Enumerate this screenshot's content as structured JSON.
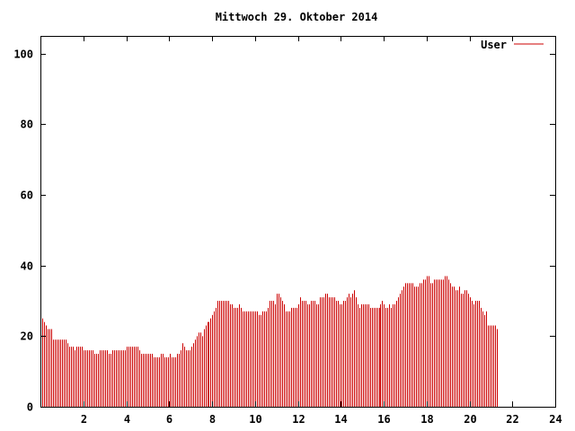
{
  "chart_data": {
    "type": "bar",
    "title": "Mittwoch 29. Oktober 2014",
    "xlabel": "",
    "ylabel": "",
    "xlim": [
      0,
      24
    ],
    "ylim": [
      0,
      105
    ],
    "x_ticks": [
      2,
      4,
      6,
      8,
      10,
      12,
      14,
      16,
      18,
      20,
      22,
      24
    ],
    "y_ticks": [
      0,
      20,
      40,
      60,
      80,
      100
    ],
    "grid": false,
    "legend_position": "top-right",
    "series": [
      {
        "name": "User",
        "color": "#cc0000",
        "step_minutes": 5,
        "values": [
          26,
          25,
          24,
          23,
          22,
          22,
          22,
          19,
          19,
          19,
          19,
          19,
          19,
          19,
          19,
          18,
          17,
          17,
          17,
          16,
          17,
          17,
          17,
          17,
          16,
          16,
          16,
          16,
          16,
          16,
          15,
          15,
          15,
          16,
          16,
          16,
          16,
          16,
          15,
          15,
          16,
          16,
          16,
          16,
          16,
          16,
          16,
          16,
          17,
          17,
          17,
          17,
          17,
          17,
          17,
          16,
          15,
          15,
          15,
          15,
          15,
          15,
          15,
          14,
          14,
          14,
          14,
          15,
          15,
          14,
          14,
          14,
          15,
          14,
          14,
          14,
          15,
          15,
          16,
          18,
          17,
          16,
          16,
          16,
          17,
          18,
          19,
          20,
          21,
          21,
          20,
          22,
          23,
          24,
          24,
          25,
          26,
          27,
          28,
          30,
          30,
          30,
          30,
          30,
          30,
          30,
          29,
          29,
          28,
          28,
          28,
          29,
          28,
          27,
          27,
          27,
          27,
          27,
          27,
          27,
          27,
          27,
          26,
          26,
          27,
          27,
          27,
          28,
          30,
          30,
          30,
          29,
          32,
          32,
          31,
          30,
          29,
          27,
          27,
          27,
          28,
          28,
          28,
          28,
          29,
          31,
          30,
          30,
          30,
          29,
          29,
          30,
          30,
          30,
          29,
          29,
          31,
          31,
          31,
          32,
          32,
          31,
          31,
          31,
          31,
          30,
          30,
          29,
          29,
          30,
          30,
          31,
          32,
          31,
          32,
          33,
          31,
          29,
          28,
          29,
          29,
          29,
          29,
          29,
          28,
          28,
          28,
          28,
          28,
          28,
          29,
          30,
          29,
          28,
          28,
          29,
          28,
          29,
          29,
          30,
          31,
          32,
          33,
          34,
          35,
          35,
          35,
          35,
          35,
          34,
          34,
          34,
          35,
          35,
          36,
          36,
          37,
          37,
          35,
          35,
          36,
          36,
          36,
          36,
          36,
          36,
          37,
          37,
          36,
          35,
          34,
          34,
          33,
          33,
          34,
          32,
          32,
          33,
          33,
          32,
          31,
          30,
          29,
          30,
          30,
          30,
          28,
          27,
          26,
          27,
          23,
          23,
          23,
          23,
          23,
          22
        ]
      }
    ]
  }
}
